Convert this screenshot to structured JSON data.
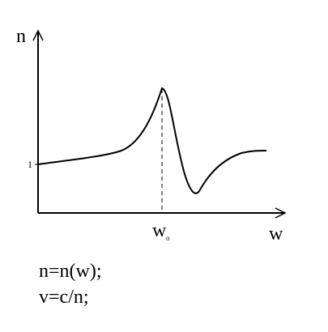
{
  "axes": {
    "y_label": "n",
    "x_label": "w",
    "y_mark": "1",
    "resonance_label": "w",
    "resonance_subscript": "o"
  },
  "equations": [
    "n=n(w);",
    "v=c/n;"
  ]
}
